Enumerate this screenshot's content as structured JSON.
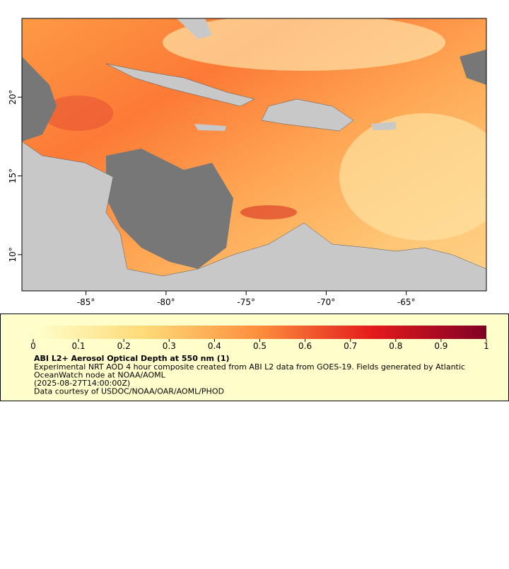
{
  "map": {
    "xlim": [
      -89,
      -60
    ],
    "ylim": [
      7.7,
      25
    ],
    "xticks": [
      {
        "value": -85,
        "label": "-85°"
      },
      {
        "value": -80,
        "label": "-80°"
      },
      {
        "value": -75,
        "label": "-75°"
      },
      {
        "value": -70,
        "label": "-70°"
      },
      {
        "value": -65,
        "label": "-65°"
      }
    ],
    "yticks": [
      {
        "value": 10,
        "label": "10°"
      },
      {
        "value": 15,
        "label": "15°"
      },
      {
        "value": 20,
        "label": "20°"
      }
    ]
  },
  "colorbar": {
    "range": [
      0,
      1
    ],
    "ticks": [
      0,
      0.1,
      0.2,
      0.3,
      0.4,
      0.5,
      0.6,
      0.7,
      0.8,
      0.9,
      1
    ]
  },
  "caption": {
    "title": "ABI L2+ Aerosol Optical Depth at 550 nm (1)",
    "lines": [
      "Experimental NRT AOD 4 hour composite created from ABI L2 data from GOES-19. Fields generated by Atlantic",
      "OceanWatch node at NOAA/AOML",
      "(2025-08-27T14:00:00Z)",
      "Data courtesy of USDOC/NOAA/OAR/AOML/PHOD"
    ]
  }
}
